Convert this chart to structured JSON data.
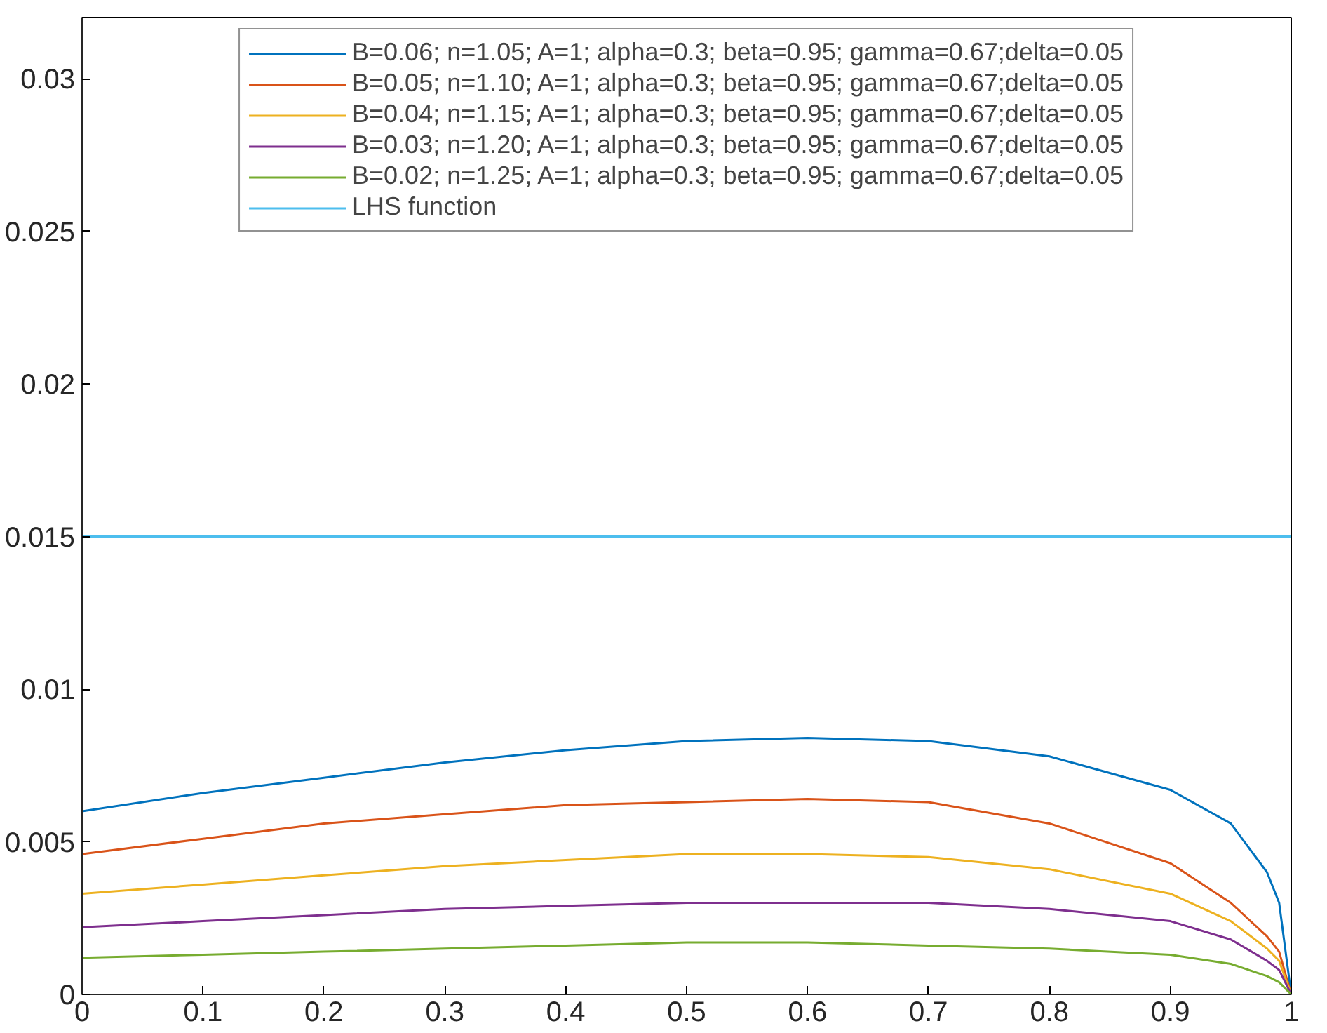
{
  "chart_data": {
    "type": "line",
    "xlim": [
      0,
      1
    ],
    "ylim": [
      0,
      0.032
    ],
    "xticks": [
      0,
      0.1,
      0.2,
      0.3,
      0.4,
      0.5,
      0.6,
      0.7,
      0.8,
      0.9,
      1
    ],
    "yticks": [
      0,
      0.005,
      0.01,
      0.015,
      0.02,
      0.025,
      0.03
    ],
    "x": [
      0,
      0.1,
      0.2,
      0.3,
      0.4,
      0.5,
      0.6,
      0.7,
      0.8,
      0.9,
      0.95,
      0.98,
      0.99,
      1
    ],
    "grid": false,
    "legend": "top",
    "marker": "none",
    "line_style": "solid",
    "series": [
      {
        "name": "B=0.06; n=1.05; A=1; alpha=0.3; beta=0.95; gamma=0.67;delta=0.05",
        "color": "#0072bd",
        "values": [
          0.006,
          0.0066,
          0.0071,
          0.0076,
          0.008,
          0.0083,
          0.0084,
          0.0083,
          0.0078,
          0.0067,
          0.0056,
          0.004,
          0.003,
          0
        ]
      },
      {
        "name": "B=0.05; n=1.10; A=1; alpha=0.3; beta=0.95; gamma=0.67;delta=0.05",
        "color": "#d95319",
        "values": [
          0.0046,
          0.0051,
          0.0056,
          0.0059,
          0.0062,
          0.0063,
          0.0064,
          0.0063,
          0.0056,
          0.0043,
          0.003,
          0.0019,
          0.0014,
          0
        ]
      },
      {
        "name": "B=0.04; n=1.15; A=1; alpha=0.3; beta=0.95; gamma=0.67;delta=0.05",
        "color": "#edb120",
        "values": [
          0.0033,
          0.0036,
          0.0039,
          0.0042,
          0.0044,
          0.0046,
          0.0046,
          0.0045,
          0.0041,
          0.0033,
          0.0024,
          0.0015,
          0.0011,
          0
        ]
      },
      {
        "name": "B=0.03; n=1.20; A=1; alpha=0.3; beta=0.95; gamma=0.67;delta=0.05",
        "color": "#7e2f8e",
        "values": [
          0.0022,
          0.0024,
          0.0026,
          0.0028,
          0.0029,
          0.003,
          0.003,
          0.003,
          0.0028,
          0.0024,
          0.0018,
          0.0011,
          0.0008,
          0
        ]
      },
      {
        "name": "B=0.02; n=1.25; A=1; alpha=0.3; beta=0.95; gamma=0.67;delta=0.05",
        "color": "#77ac30",
        "values": [
          0.0012,
          0.0013,
          0.0014,
          0.0015,
          0.0016,
          0.0017,
          0.0017,
          0.0016,
          0.0015,
          0.0013,
          0.001,
          0.0006,
          0.0004,
          0
        ]
      },
      {
        "name": "LHS function",
        "color": "#4dbeee",
        "x": [
          0,
          1
        ],
        "values": [
          0.015,
          0.015
        ]
      }
    ]
  }
}
